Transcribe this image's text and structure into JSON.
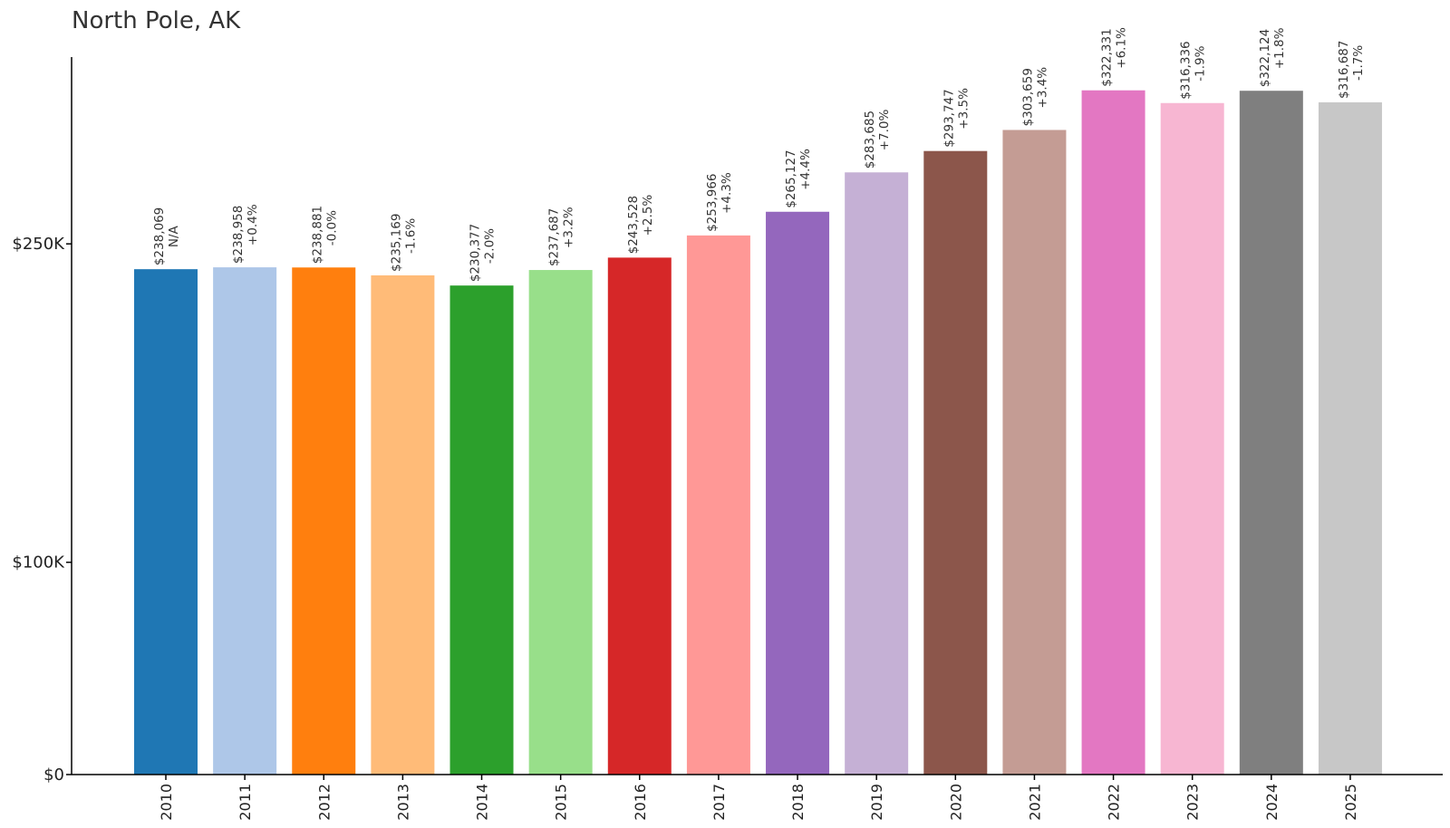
{
  "chart_data": {
    "type": "bar",
    "title": "North Pole, AK",
    "xlabel": "",
    "ylabel": "",
    "categories": [
      "2010",
      "2011",
      "2012",
      "2013",
      "2014",
      "2015",
      "2016",
      "2017",
      "2018",
      "2019",
      "2020",
      "2021",
      "2022",
      "2023",
      "2024",
      "2025"
    ],
    "values": [
      238069,
      238958,
      238881,
      235169,
      230377,
      237687,
      243528,
      253966,
      265127,
      283685,
      293747,
      303659,
      322331,
      316336,
      322124,
      316687
    ],
    "value_labels": [
      "$238,069",
      "$238,958",
      "$238,881",
      "$235,169",
      "$230,377",
      "$237,687",
      "$243,528",
      "$253,966",
      "$265,127",
      "$283,685",
      "$293,747",
      "$303,659",
      "$322,331",
      "$316,336",
      "$322,124",
      "$316,687"
    ],
    "change_labels": [
      "N/A",
      "+0.4%",
      "-0.0%",
      "-1.6%",
      "-2.0%",
      "+3.2%",
      "+2.5%",
      "+4.3%",
      "+4.4%",
      "+7.0%",
      "+3.5%",
      "+3.4%",
      "+6.1%",
      "-1.9%",
      "+1.8%",
      "-1.7%"
    ],
    "colors": [
      "#1f77b4",
      "#aec7e8",
      "#ff7f0e",
      "#ffbb78",
      "#2ca02c",
      "#98df8a",
      "#d62728",
      "#ff9896",
      "#9467bd",
      "#c5b0d5",
      "#8c564b",
      "#c49c94",
      "#e377c2",
      "#f7b6d2",
      "#7f7f7f",
      "#c7c7c7"
    ],
    "y_ticks": [
      0,
      100000,
      250000
    ],
    "y_tick_labels": [
      "$0",
      "$100K",
      "$250K"
    ],
    "ylim": [
      0,
      338000
    ],
    "grid": false,
    "legend": "none"
  }
}
